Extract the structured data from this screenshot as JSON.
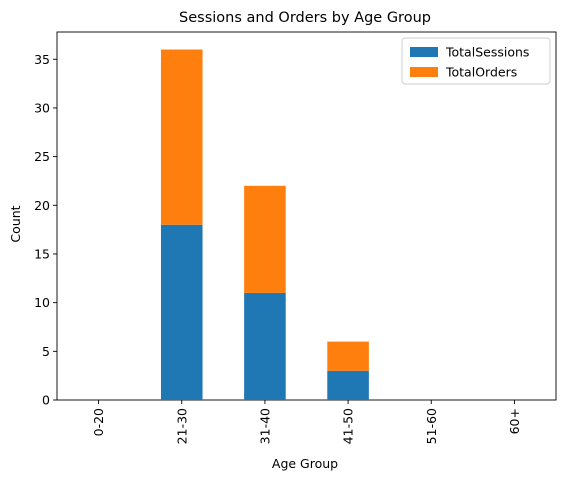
{
  "chart_data": {
    "type": "bar",
    "stacked": true,
    "title": "Sessions and Orders by Age Group",
    "xlabel": "Age Group",
    "ylabel": "Count",
    "categories": [
      "0-20",
      "21-30",
      "31-40",
      "41-50",
      "51-60",
      "60+"
    ],
    "series": [
      {
        "name": "TotalSessions",
        "values": [
          0,
          18,
          11,
          3,
          0,
          0
        ],
        "color": "#1f77b4"
      },
      {
        "name": "TotalOrders",
        "values": [
          0,
          18,
          11,
          3,
          0,
          0
        ],
        "color": "#ff7f0e"
      }
    ],
    "ylim": [
      0,
      37.8
    ],
    "yticks": [
      0,
      5,
      10,
      15,
      20,
      25,
      30,
      35
    ],
    "xtick_rotation": 90,
    "grid": false,
    "legend_position": "top-right"
  }
}
